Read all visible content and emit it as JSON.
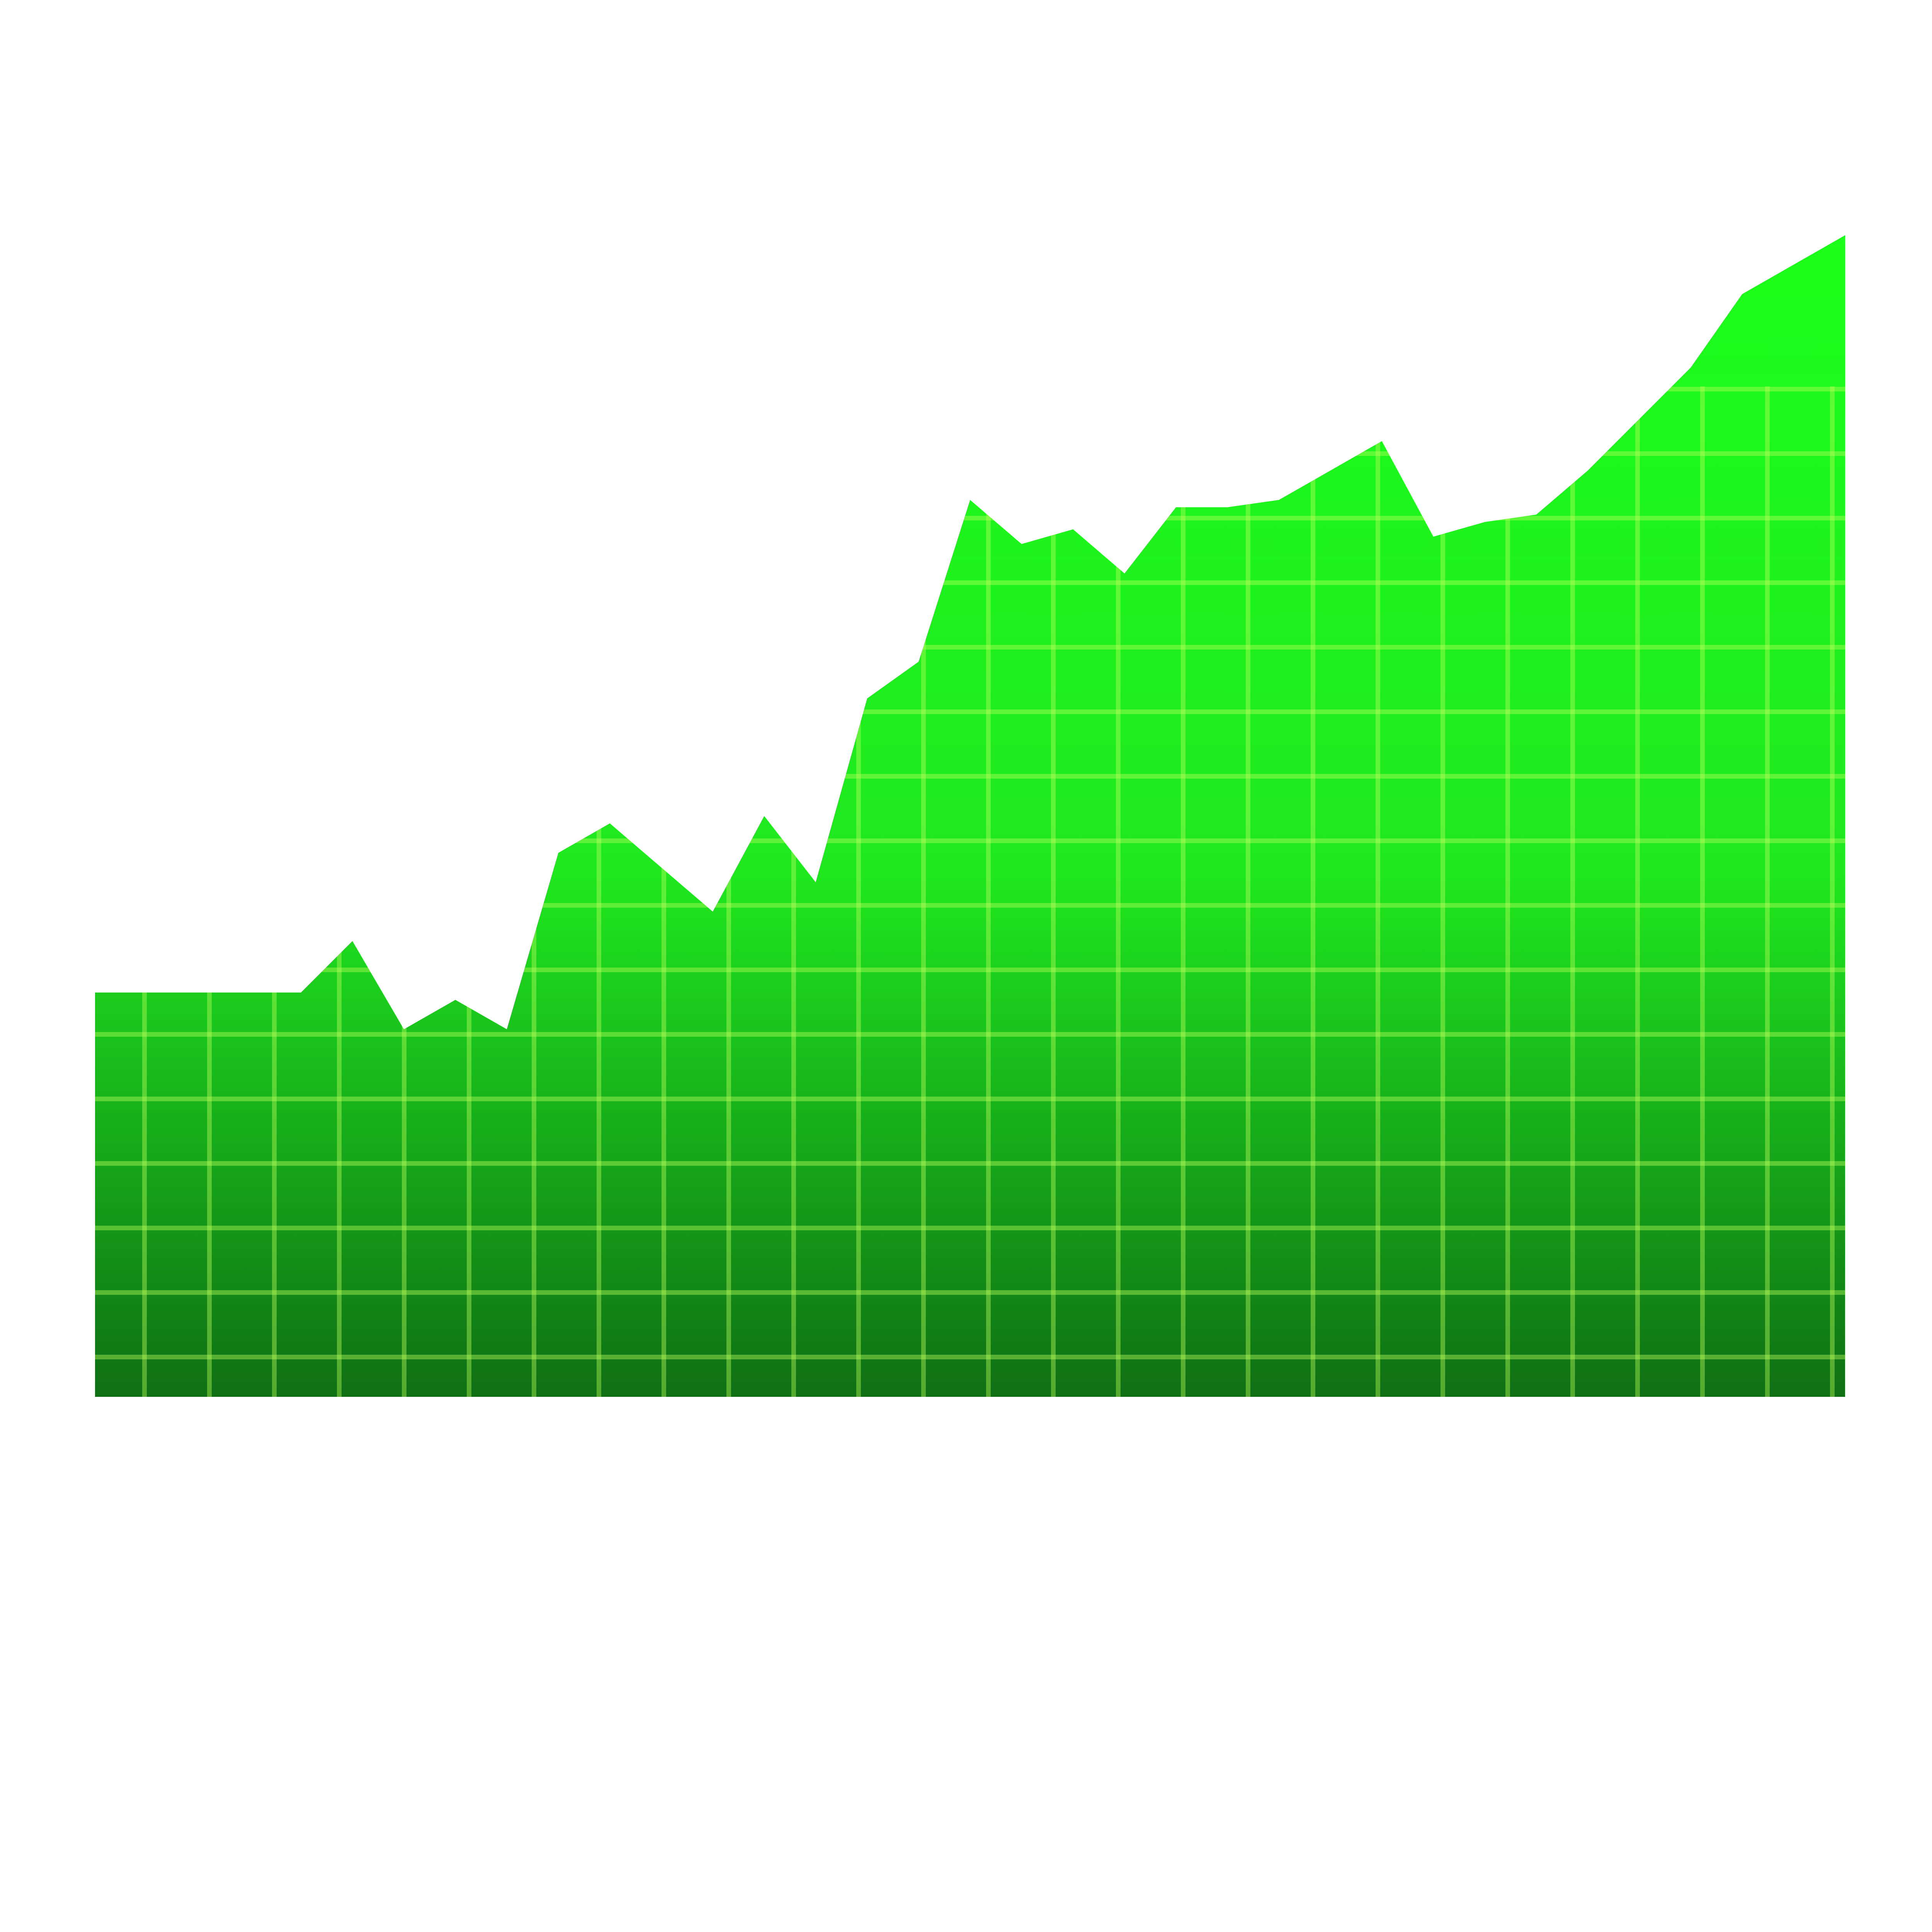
{
  "chart_data": {
    "type": "area",
    "title": "",
    "xlabel": "",
    "ylabel": "",
    "x": [
      0,
      1,
      2,
      3,
      4,
      5,
      6,
      7,
      8,
      9,
      10,
      11,
      12,
      13,
      14,
      15,
      16,
      17,
      18,
      19,
      20,
      21,
      22,
      23,
      24,
      25,
      26,
      27,
      28,
      29,
      30,
      31,
      32,
      33,
      34
    ],
    "values": [
      5.5,
      5.5,
      5.5,
      5.5,
      5.5,
      6.2,
      5.0,
      5.4,
      5.0,
      7.4,
      7.8,
      7.2,
      6.6,
      7.9,
      7.0,
      9.5,
      10.0,
      12.2,
      11.6,
      11.8,
      11.2,
      12.1,
      12.1,
      12.2,
      12.6,
      13.0,
      11.7,
      11.9,
      12.0,
      12.6,
      13.3,
      14.0,
      15.0,
      15.4,
      15.8
    ],
    "xlim": [
      0,
      34
    ],
    "ylim": [
      0,
      19
    ],
    "grid": true,
    "legend": "none",
    "colors": {
      "fill_top": "#1cff1a",
      "fill_bottom": "#0f6f14",
      "grid": "#b9ff5a"
    }
  }
}
